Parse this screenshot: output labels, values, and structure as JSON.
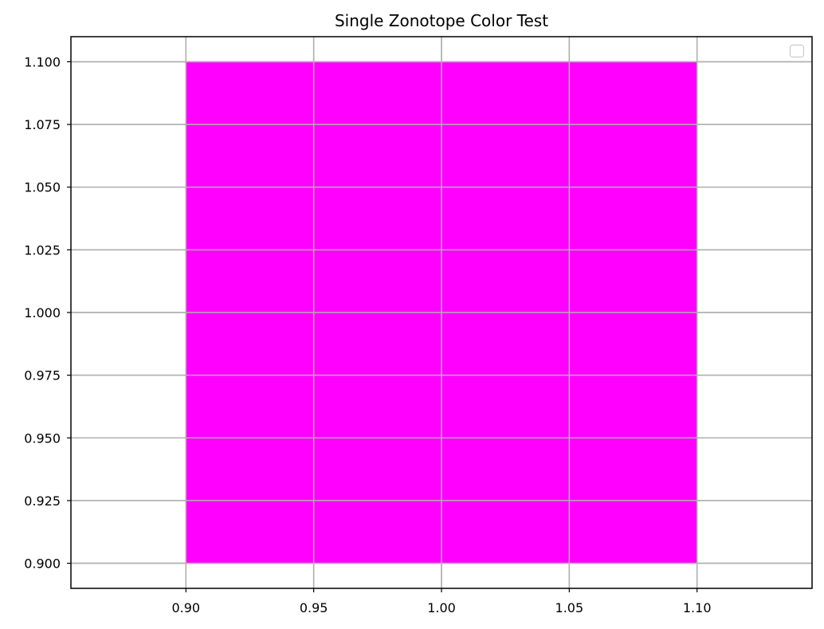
{
  "chart_data": {
    "type": "area",
    "title": "Single Zonotope Color Test",
    "xlabel": "",
    "ylabel": "",
    "xlim": [
      0.855,
      1.145
    ],
    "ylim": [
      0.89,
      1.11
    ],
    "x_ticks": [
      0.9,
      0.95,
      1.0,
      1.05,
      1.1
    ],
    "x_tick_labels": [
      "0.90",
      "0.95",
      "1.00",
      "1.05",
      "1.10"
    ],
    "y_ticks": [
      0.9,
      0.925,
      0.95,
      0.975,
      1.0,
      1.025,
      1.05,
      1.075,
      1.1
    ],
    "y_tick_labels": [
      "0.900",
      "0.925",
      "0.950",
      "0.975",
      "1.000",
      "1.025",
      "1.050",
      "1.075",
      "1.100"
    ],
    "grid": true,
    "legend": {
      "placement": "top-right",
      "entries": []
    },
    "series": [
      {
        "shape": "zonotope",
        "color": "#ff00ff",
        "vertices": [
          [
            0.9,
            0.9
          ],
          [
            1.1,
            0.9
          ],
          [
            1.1,
            1.1
          ],
          [
            0.9,
            1.1
          ]
        ]
      }
    ]
  }
}
